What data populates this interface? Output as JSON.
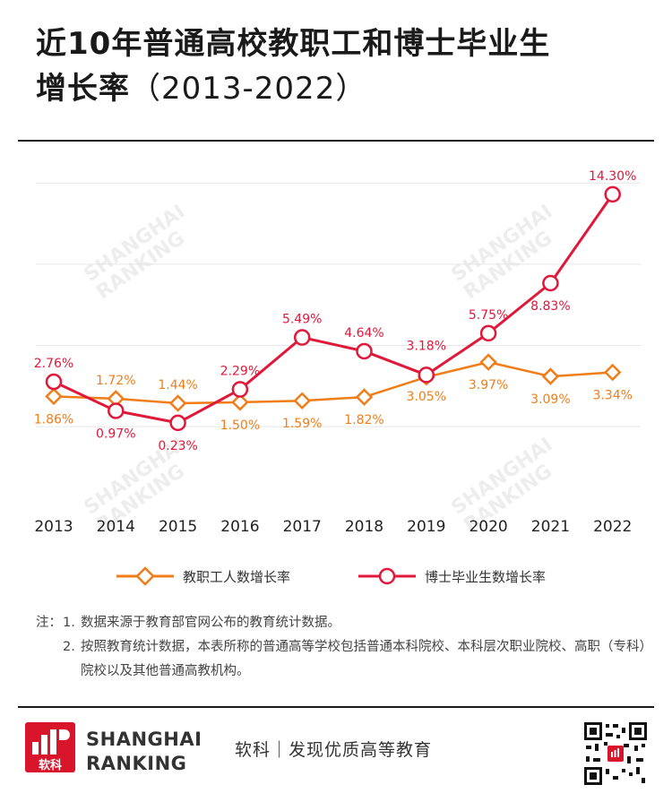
{
  "title": {
    "line1": "近10年普通高校教职工和博士毕业生",
    "line2": "增长率",
    "line2_suffix": "（2013-2022）"
  },
  "watermark": {
    "line1": "SHANGHAI",
    "line2": "RANKING"
  },
  "chart_data": {
    "type": "line",
    "categories": [
      "2013",
      "2014",
      "2015",
      "2016",
      "2017",
      "2018",
      "2019",
      "2020",
      "2021",
      "2022"
    ],
    "series": [
      {
        "name": "教职工人数增长率",
        "marker": "diamond",
        "color": "#F07D18",
        "values": [
          1.86,
          1.72,
          1.44,
          1.5,
          1.59,
          1.82,
          3.05,
          3.97,
          3.09,
          3.34
        ],
        "labels": [
          "1.86%",
          "1.72%",
          "1.44%",
          "1.50%",
          "1.59%",
          "1.82%",
          "3.05%",
          "3.97%",
          "3.09%",
          "3.34%"
        ]
      },
      {
        "name": "博士毕业生数增长率",
        "marker": "circle",
        "color": "#E0183A",
        "values": [
          2.76,
          0.97,
          0.23,
          2.29,
          5.49,
          4.64,
          3.18,
          5.75,
          8.83,
          14.3
        ],
        "labels": [
          "2.76%",
          "0.97%",
          "0.23%",
          "2.29%",
          "5.49%",
          "4.64%",
          "3.18%",
          "5.75%",
          "8.83%",
          "14.30%"
        ]
      }
    ],
    "ylim": [
      -4.3,
      16.5
    ],
    "gridlines": [
      0,
      5,
      10,
      15
    ],
    "grid": true,
    "legend": "bottom-center"
  },
  "notes": {
    "label": "注：",
    "items": [
      {
        "num": "1.",
        "text": "数据来源于教育部官网公布的教育统计数据。"
      },
      {
        "num": "2.",
        "text": "按照教育统计数据，本表所称的普通高等学校包括普通本科院校、本科层次职业院校、高职（专科）院校以及其他普通高教机构。"
      }
    ]
  },
  "footer": {
    "logo_text": "软科",
    "brand_line1": "SHANGHAI",
    "brand_line2": "RANKING",
    "tagline": "软科｜发现优质高等教育",
    "qr_icon": "qr-code-icon"
  }
}
